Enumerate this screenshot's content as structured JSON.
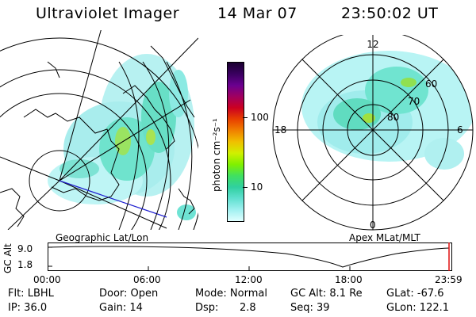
{
  "header": {
    "instrument": "Ultraviolet Imager",
    "date": "14 Mar 07",
    "time": "23:50:02 UT"
  },
  "colorbar": {
    "unit_label": "photon cm⁻²s⁻¹",
    "ticks": [
      "100",
      "10"
    ],
    "colors": [
      "#1a0030",
      "#3a0060",
      "#6a0090",
      "#a00060",
      "#cc0020",
      "#e84000",
      "#f08000",
      "#f0c000",
      "#d0f000",
      "#80f000",
      "#40e060",
      "#30d0a0",
      "#60e0d0",
      "#a0f0f0",
      "#e0ffff"
    ]
  },
  "left_panel": {
    "caption": "Geographic Lat/Lon"
  },
  "right_panel": {
    "caption": "Apex  MLat/MLT",
    "mlt_labels": [
      "12",
      "18",
      "6",
      "0"
    ],
    "lat_labels": [
      "60",
      "70",
      "80"
    ]
  },
  "timeline": {
    "axis_label": "GC Alt",
    "y_max": "9.0",
    "y_min": "1.8",
    "x_ticks": [
      "00:00",
      "06:00",
      "12:00",
      "18:00",
      "23:59"
    ]
  },
  "info": {
    "row1": [
      "Flt: LBHL",
      "Door: Open",
      "Mode: Normal",
      "GC Alt: 8.1 Re",
      "GLat: -67.6"
    ],
    "row2": [
      "IP: 36.0",
      "Gain: 14",
      "Dsp:",
      "2.8",
      "Seq: 39",
      "GLon: 122.1"
    ]
  }
}
